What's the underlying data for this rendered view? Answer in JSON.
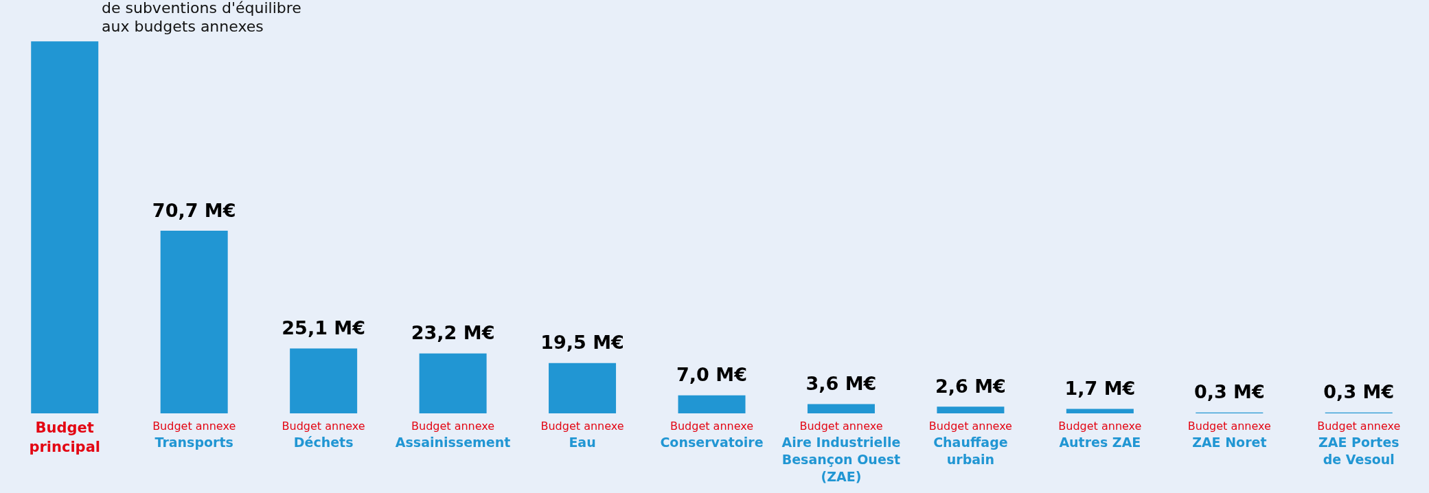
{
  "chart_data": {
    "type": "bar",
    "categories": [
      "Budget\nprincipal",
      "Budget annexe\nTransports",
      "Budget annexe\nDéchets",
      "Budget annexe\nAssainissement",
      "Budget annexe\nEau",
      "Budget annexe\nConservatoire",
      "Budget annexe\nAire Industrielle\nBesançon Ouest\n(ZAE)",
      "Budget annexe\nChauffage\nurbain",
      "Budget annexe\nAutres ZAE",
      "Budget annexe\nZAE Noret",
      "Budget annexe\nZAE Portes\nde Vesoul"
    ],
    "values": [
      144,
      70.7,
      25.1,
      23.2,
      19.5,
      7.0,
      3.6,
      2.6,
      1.7,
      0.3,
      0.3
    ],
    "value_labels": [
      null,
      "70,7 M€",
      "25,1 M€",
      "23,2 M€",
      "19,5 M€",
      "7,0 M€",
      "3,6 M€",
      "2,6 M€",
      "1,7 M€",
      "0,3 M€",
      "0,3 M€"
    ],
    "color": "#2196d3",
    "annotations": [
      "de subventions d'équilibre\naux budgets annexes"
    ],
    "grid": false,
    "legend": false
  }
}
